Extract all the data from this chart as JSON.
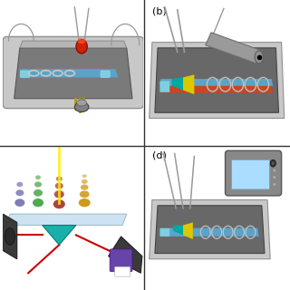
{
  "figure_size": [
    3.2,
    3.2
  ],
  "dpi": 100,
  "background_color": "#ffffff",
  "panel_labels": [
    "(b)",
    "(d)"
  ],
  "label_fontsize": 8,
  "chip_gray": "#7a7a7a",
  "chip_light": "#b5b5b5",
  "chip_outer": "#c8c8c8",
  "channel_blue": "#5ba3c9",
  "channel_red": "#cc4422",
  "coil_color": "#c0c0c0",
  "wire_gray": "#999999",
  "led_red": "#cc2200",
  "led_bright": "#ff5533",
  "laser_gold": "#b8960c",
  "laser_body": "#707070",
  "cyan_port": "#7ecfdf",
  "yellow_junc": "#ddc800",
  "teal_junc": "#00a8a0",
  "fiber_gray": "#9a9a9a",
  "green_particle": "#3da03d",
  "red_particle": "#a03030",
  "gold_particle": "#c89000",
  "purple_particle": "#7070b0",
  "prism_teal": "#00a8a0",
  "laser_red": "#cc0000",
  "phone_gray": "#888888",
  "phone_screen": "#aaddff",
  "white": "#ffffff"
}
